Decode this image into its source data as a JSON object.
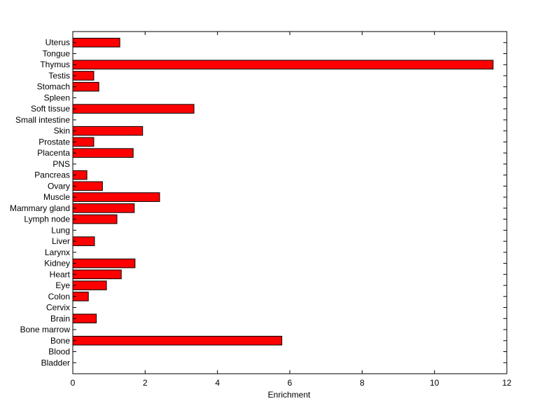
{
  "chart_data": {
    "type": "bar",
    "orientation": "horizontal",
    "title": "",
    "xlabel": "Enrichment",
    "ylabel": "",
    "xlim": [
      0,
      12
    ],
    "xticks": [
      0,
      2,
      4,
      6,
      8,
      10,
      12
    ],
    "grid": false,
    "bar_color": "#ff0000",
    "bar_edge_color": "#000000",
    "categories": [
      "Bladder",
      "Blood",
      "Bone",
      "Bone marrow",
      "Brain",
      "Cervix",
      "Colon",
      "Eye",
      "Heart",
      "Kidney",
      "Larynx",
      "Liver",
      "Lung",
      "Lymph node",
      "Mammary gland",
      "Muscle",
      "Ovary",
      "Pancreas",
      "PNS",
      "Placenta",
      "Prostate",
      "Skin",
      "Small intestine",
      "Soft tissue",
      "Spleen",
      "Stomach",
      "Testis",
      "Thymus",
      "Tongue",
      "Uterus"
    ],
    "values": [
      0,
      0,
      5.78,
      0,
      0.65,
      0,
      0.43,
      0.93,
      1.34,
      1.72,
      0,
      0.6,
      0,
      1.22,
      1.7,
      2.4,
      0.82,
      0.39,
      0,
      1.67,
      0.58,
      1.93,
      0,
      3.35,
      0,
      0.72,
      0.58,
      11.62,
      0,
      1.3
    ]
  }
}
